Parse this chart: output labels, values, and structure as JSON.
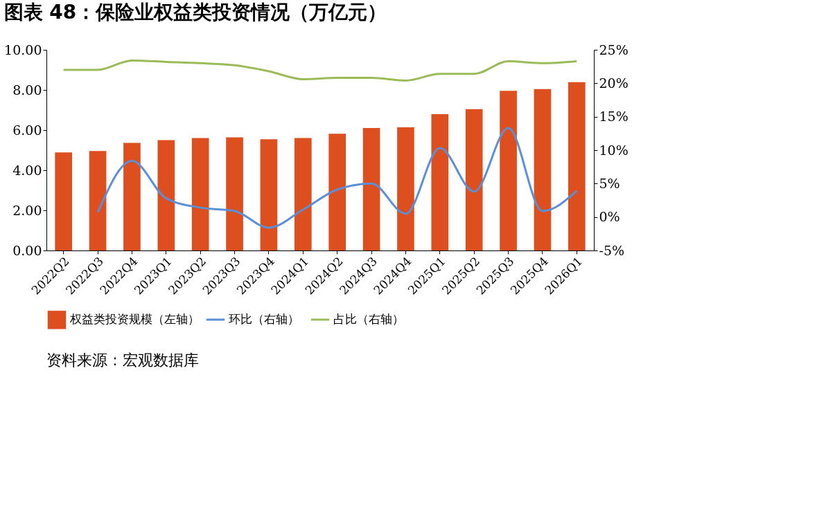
{
  "chart_data": {
    "type": "bar",
    "title": "图表 48：保险业权益类投资情况（万亿元）",
    "categories": [
      "2022Q2",
      "2022Q3",
      "2022Q4",
      "2023Q1",
      "2023Q2",
      "2023Q3",
      "2023Q4",
      "2024Q1",
      "2024Q2",
      "2024Q3",
      "2024Q4",
      "2025Q1",
      "2025Q2",
      "2025Q3",
      "2025Q4",
      "2026Q1"
    ],
    "series": [
      {
        "name": "权益类投资规模（左轴）",
        "color": "#dd4f1f",
        "values": [
          4.89,
          4.96,
          5.36,
          5.5,
          5.6,
          5.64,
          5.54,
          5.6,
          5.82,
          6.1,
          6.14,
          6.79,
          7.04,
          7.96,
          8.04,
          8.39
        ]
      },
      {
        "name": "环比（右轴）",
        "type": "line",
        "axis": "y2",
        "color": "#5b8fd6",
        "values": [
          null,
          0.7,
          8.4,
          2.8,
          1.4,
          0.9,
          -1.6,
          1.1,
          4.1,
          5.0,
          0.5,
          10.3,
          3.8,
          13.3,
          0.9,
          3.9
        ]
      },
      {
        "name": "占比（右轴）",
        "type": "line",
        "axis": "y2",
        "color": "#9bbb59",
        "values": [
          22.0,
          22.0,
          23.4,
          23.2,
          23.0,
          22.7,
          21.8,
          20.6,
          20.8,
          20.8,
          20.4,
          21.4,
          21.4,
          23.3,
          23.0,
          23.3
        ]
      }
    ],
    "ylim": [
      0,
      10
    ],
    "yticks": [
      {
        "value": 0,
        "label": "0.00"
      },
      {
        "value": 2,
        "label": "2.00"
      },
      {
        "value": 4,
        "label": "4.00"
      },
      {
        "value": 6,
        "label": "6.00"
      },
      {
        "value": 8,
        "label": "8.00"
      },
      {
        "value": 10,
        "label": "10.00"
      }
    ],
    "y2lim": [
      -5,
      25
    ],
    "y2ticks": [
      {
        "value": -5,
        "label": "-5%"
      },
      {
        "value": 0,
        "label": "0%"
      },
      {
        "value": 5,
        "label": "5%"
      },
      {
        "value": 10,
        "label": "10%"
      },
      {
        "value": 15,
        "label": "15%"
      },
      {
        "value": 20,
        "label": "20%"
      },
      {
        "value": 25,
        "label": "25%"
      }
    ],
    "grid": false,
    "legend": "bottom",
    "marker": "none",
    "line_style": "solid",
    "annotations": [
      "资料来源：宏观数据库"
    ]
  }
}
